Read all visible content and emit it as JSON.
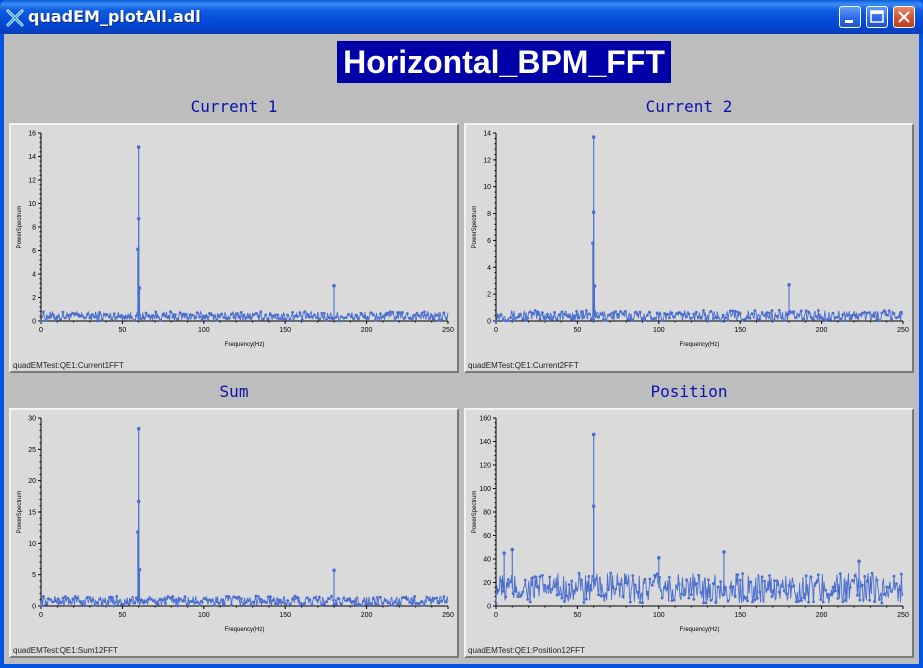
{
  "window": {
    "title": "quadEM_plotAll.adl",
    "colors": {
      "titlebar": "#0054e3",
      "background": "#bdbdbd",
      "banner_bg": "#0000a8",
      "trace": "#4a6ed0",
      "title_text": "#0a10b0"
    }
  },
  "banner": {
    "text": "Horizontal_BPM_FFT"
  },
  "plots": [
    {
      "title": "Current 1",
      "pv": "quadEMTest:QE1:Current1FFT",
      "chart_data": {
        "type": "line",
        "xlabel": "Frequency(Hz)",
        "ylabel": "PowerSpectrum",
        "xlim": [
          0,
          250
        ],
        "ylim": [
          0,
          16
        ],
        "xticks": [
          "0",
          "50",
          "100",
          "150",
          "200",
          "250"
        ],
        "yticks": [
          "0",
          "2",
          "4",
          "6",
          "8",
          "10",
          "12",
          "14",
          "16"
        ],
        "baseline": {
          "mean": 0.4,
          "spread": 0.4
        },
        "peaks": [
          {
            "x": 60,
            "y": 14.8
          },
          {
            "x": 60,
            "y": 8.7
          },
          {
            "x": 59.5,
            "y": 6.1
          },
          {
            "x": 60.5,
            "y": 2.8
          },
          {
            "x": 180,
            "y": 3.0
          }
        ]
      }
    },
    {
      "title": "Current 2",
      "pv": "quadEMTest:QE1:Current2FFT",
      "chart_data": {
        "type": "line",
        "xlabel": "Frequency(Hz)",
        "ylabel": "PowerSpectrum",
        "xlim": [
          0,
          250
        ],
        "ylim": [
          0,
          14
        ],
        "xticks": [
          "0",
          "50",
          "100",
          "150",
          "200",
          "250"
        ],
        "yticks": [
          "0",
          "2",
          "4",
          "6",
          "8",
          "10",
          "12",
          "14"
        ],
        "baseline": {
          "mean": 0.4,
          "spread": 0.4
        },
        "peaks": [
          {
            "x": 60,
            "y": 13.7
          },
          {
            "x": 60,
            "y": 8.1
          },
          {
            "x": 59.5,
            "y": 5.8
          },
          {
            "x": 60.5,
            "y": 2.6
          },
          {
            "x": 180,
            "y": 2.7
          }
        ]
      }
    },
    {
      "title": "Sum",
      "pv": "quadEMTest:QE1:Sum12FFT",
      "chart_data": {
        "type": "line",
        "xlabel": "Frequency(Hz)",
        "ylabel": "PowerSpectrum",
        "xlim": [
          0,
          250
        ],
        "ylim": [
          0,
          30
        ],
        "xticks": [
          "0",
          "50",
          "100",
          "150",
          "200",
          "250"
        ],
        "yticks": [
          "0",
          "5",
          "10",
          "15",
          "20",
          "25",
          "30"
        ],
        "baseline": {
          "mean": 0.8,
          "spread": 0.8
        },
        "peaks": [
          {
            "x": 60,
            "y": 28.3
          },
          {
            "x": 60,
            "y": 16.7
          },
          {
            "x": 59.5,
            "y": 11.8
          },
          {
            "x": 60.5,
            "y": 5.8
          },
          {
            "x": 180,
            "y": 5.7
          }
        ]
      }
    },
    {
      "title": "Position",
      "pv": "quadEMTest:QE1:Position12FFT",
      "chart_data": {
        "type": "line",
        "xlabel": "Frequency(Hz)",
        "ylabel": "PowerSpectrum",
        "xlim": [
          0,
          250
        ],
        "ylim": [
          0,
          160
        ],
        "xticks": [
          "0",
          "50",
          "100",
          "150",
          "200",
          "250"
        ],
        "yticks": [
          "0",
          "20",
          "40",
          "60",
          "80",
          "100",
          "120",
          "140",
          "160"
        ],
        "baseline": {
          "mean": 15,
          "spread": 13
        },
        "peaks": [
          {
            "x": 60,
            "y": 146
          },
          {
            "x": 60,
            "y": 85
          },
          {
            "x": 5,
            "y": 45
          },
          {
            "x": 10,
            "y": 48
          },
          {
            "x": 140,
            "y": 46
          },
          {
            "x": 100,
            "y": 41
          },
          {
            "x": 223,
            "y": 38
          }
        ]
      }
    }
  ]
}
